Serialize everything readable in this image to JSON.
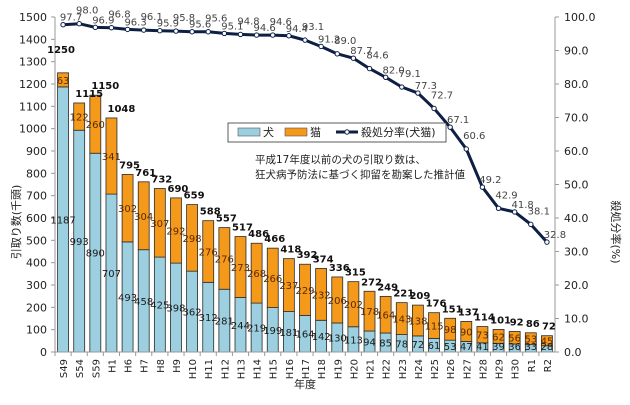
{
  "chart_data": {
    "type": "bar",
    "subtype": "stacked-bar-with-line",
    "title": "",
    "xlabel": "年度",
    "ylabel": "引取り数(千頭)",
    "y2label": "殺処分率(%)",
    "ylim": [
      0,
      1500
    ],
    "y2lim": [
      0,
      100
    ],
    "yticks": [
      "0",
      "100",
      "200",
      "300",
      "400",
      "500",
      "600",
      "700",
      "800",
      "900",
      "1000",
      "1100",
      "1200",
      "1300",
      "1400",
      "1500"
    ],
    "y2ticks": [
      "0.0",
      "10.0",
      "20.0",
      "30.0",
      "40.0",
      "50.0",
      "60.0",
      "70.0",
      "80.0",
      "90.0",
      "100.0"
    ],
    "grid": false,
    "legend_position": "top-center",
    "categories": [
      "S49",
      "S54",
      "S59",
      "H1",
      "H6",
      "H7",
      "H8",
      "H9",
      "H10",
      "H11",
      "H12",
      "H13",
      "H14",
      "H15",
      "H16",
      "H17",
      "H18",
      "H19",
      "H20",
      "H21",
      "H22",
      "H23",
      "H24",
      "H25",
      "H26",
      "H27",
      "H28",
      "H29",
      "H30",
      "R1",
      "R2"
    ],
    "series": [
      {
        "name": "犬",
        "type": "bar",
        "axis": "left",
        "color": "#9ccfdf",
        "values": [
          1187,
          993,
          890,
          707,
          493,
          458,
          425,
          398,
          362,
          312,
          281,
          244,
          219,
          199,
          181,
          164,
          142,
          130,
          113,
          94,
          85,
          78,
          72,
          61,
          53,
          47,
          41,
          39,
          36,
          33,
          28
        ]
      },
      {
        "name": "猫",
        "type": "bar",
        "axis": "left",
        "color": "#f5991a",
        "values": [
          63,
          122,
          260,
          341,
          302,
          304,
          307,
          292,
          298,
          276,
          276,
          273,
          268,
          266,
          237,
          229,
          232,
          206,
          202,
          178,
          164,
          143,
          138,
          115,
          98,
          90,
          73,
          62,
          56,
          53,
          45
        ]
      },
      {
        "name": "殺処分率(犬猫)",
        "type": "line",
        "axis": "right",
        "color": "#0d1f45",
        "values": [
          97.7,
          98.0,
          96.9,
          96.8,
          96.3,
          96.1,
          95.9,
          95.8,
          95.6,
          95.6,
          95.1,
          94.8,
          94.6,
          94.6,
          94.4,
          93.1,
          91.2,
          89.0,
          87.7,
          84.6,
          82.0,
          79.1,
          77.3,
          72.7,
          67.1,
          60.6,
          49.2,
          42.9,
          41.8,
          38.1,
          32.8
        ]
      }
    ],
    "totals": [
      1250,
      1115,
      1150,
      1048,
      795,
      761,
      732,
      690,
      659,
      588,
      557,
      517,
      486,
      466,
      418,
      392,
      374,
      336,
      315,
      272,
      249,
      221,
      209,
      176,
      151,
      137,
      114,
      101,
      92,
      86,
      72
    ],
    "annotation": [
      "平成17年度以前の犬の引取り数は、",
      "狂犬病予防法に基づく抑留を勘案した推計値"
    ]
  }
}
